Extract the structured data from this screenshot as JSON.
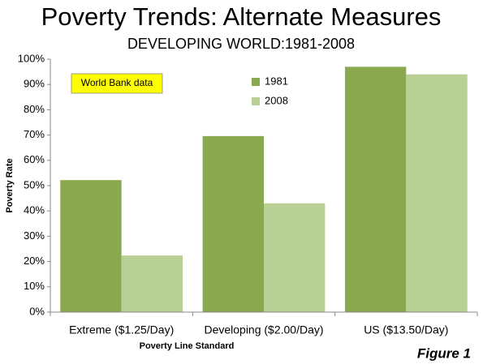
{
  "chart_data": {
    "type": "bar",
    "title": "Poverty Trends: Alternate Measures",
    "subtitle": "DEVELOPING WORLD:1981-2008",
    "x_label": "Poverty Line Standard",
    "y_label": "Poverty Rate",
    "annotation": "World Bank data",
    "figure_label": "Figure 1",
    "categories": [
      "Extreme ($1.25/Day)",
      "Developing ($2.00/Day)",
      "US ($13.50/Day)"
    ],
    "series": [
      {
        "name": "1981",
        "color": "#8aa84f",
        "values": [
          52.2,
          69.6,
          97
        ]
      },
      {
        "name": "2008",
        "color": "#b9d094",
        "values": [
          22.4,
          43,
          94
        ]
      }
    ],
    "ylim": [
      0,
      100
    ],
    "yticks": [
      {
        "value": 0,
        "label": "0%"
      },
      {
        "value": 10,
        "label": "10%"
      },
      {
        "value": 20,
        "label": "20%"
      },
      {
        "value": 30,
        "label": "30%"
      },
      {
        "value": 40,
        "label": "40%"
      },
      {
        "value": 50,
        "label": "50%"
      },
      {
        "value": 60,
        "label": "60%"
      },
      {
        "value": 70,
        "label": "70%"
      },
      {
        "value": 80,
        "label": "80%"
      },
      {
        "value": 90,
        "label": "90%"
      },
      {
        "value": 100,
        "label": "100%"
      }
    ],
    "grid": false,
    "legend": "top"
  }
}
